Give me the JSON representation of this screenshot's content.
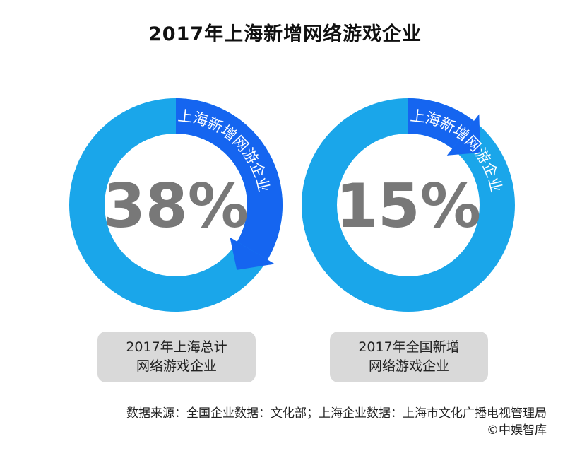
{
  "title": "2017年上海新增网络游戏企业",
  "colors": {
    "ring_base": "#1aa6ea",
    "ring_highlight": "#1565f0",
    "percent_text": "#787878",
    "caption_bg": "#d9d9d9"
  },
  "chart_data": [
    {
      "type": "pie",
      "style": "donut",
      "value": 38,
      "center_label": "38%",
      "arc_label": "上海新增网游企业",
      "caption_lines": [
        "2017年上海总计",
        "网络游戏企业"
      ]
    },
    {
      "type": "pie",
      "style": "donut",
      "value": 15,
      "center_label": "15%",
      "arc_label": "上海新增网游企业",
      "caption_lines": [
        "2017年全国新增",
        "网络游戏企业"
      ]
    }
  ],
  "source": {
    "line1": "数据来源：全国企业数据：文化部；上海企业数据：上海市文化广播电视管理局",
    "line2": "©中娱智库"
  }
}
